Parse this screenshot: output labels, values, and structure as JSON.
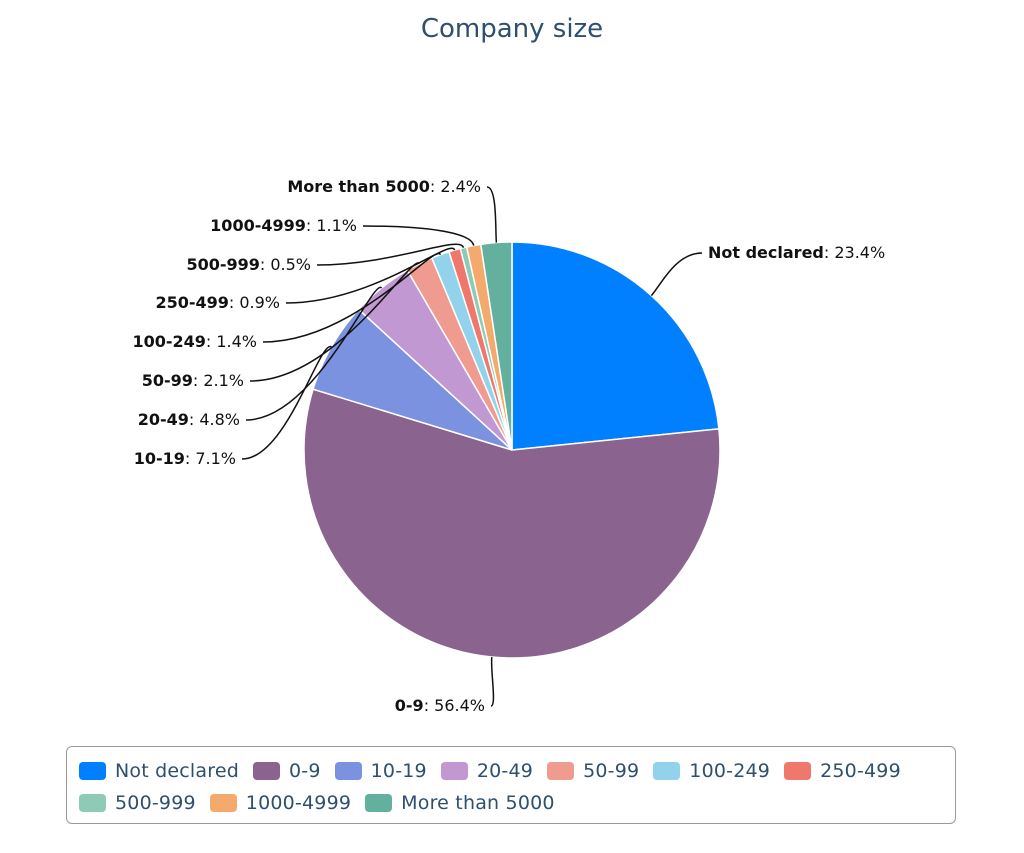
{
  "chart_data": {
    "type": "pie",
    "title": "Company size",
    "slices": [
      {
        "name": "Not declared",
        "value": 23.4,
        "label": "23.4%",
        "color": "#0080ff"
      },
      {
        "name": "0-9",
        "value": 56.4,
        "label": "56.4%",
        "color": "#8a638e"
      },
      {
        "name": "10-19",
        "value": 7.1,
        "label": "7.1%",
        "color": "#7b92e0"
      },
      {
        "name": "20-49",
        "value": 4.8,
        "label": "4.8%",
        "color": "#c198d1"
      },
      {
        "name": "50-99",
        "value": 2.1,
        "label": "2.1%",
        "color": "#f09b90"
      },
      {
        "name": "100-249",
        "value": 1.4,
        "label": "1.4%",
        "color": "#92d2ea"
      },
      {
        "name": "250-499",
        "value": 0.9,
        "label": "0.9%",
        "color": "#f0776c"
      },
      {
        "name": "500-999",
        "value": 0.5,
        "label": "0.5%",
        "color": "#8ecab6"
      },
      {
        "name": "1000-4999",
        "value": 1.1,
        "label": "1.1%",
        "color": "#f4aa6c"
      },
      {
        "name": "More than 5000",
        "value": 2.4,
        "label": "2.4%",
        "color": "#62b09d"
      }
    ],
    "legend": {
      "position": "bottom"
    }
  }
}
